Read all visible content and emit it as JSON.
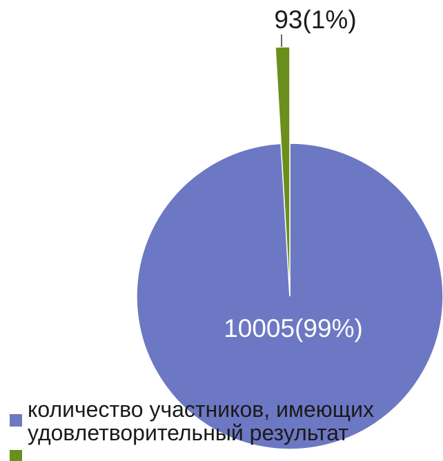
{
  "chart_data": {
    "type": "pie",
    "title": "",
    "slices": [
      {
        "label": "количество участников, имеющих удовлетворительный результат",
        "value": 10005,
        "percent": 99,
        "display": "10005(99%)",
        "color": "#6d78c4"
      },
      {
        "label": "",
        "value": 93,
        "percent": 1,
        "display": "93(1%)",
        "color": "#6a8f1c"
      }
    ],
    "legend_position": "bottom"
  }
}
